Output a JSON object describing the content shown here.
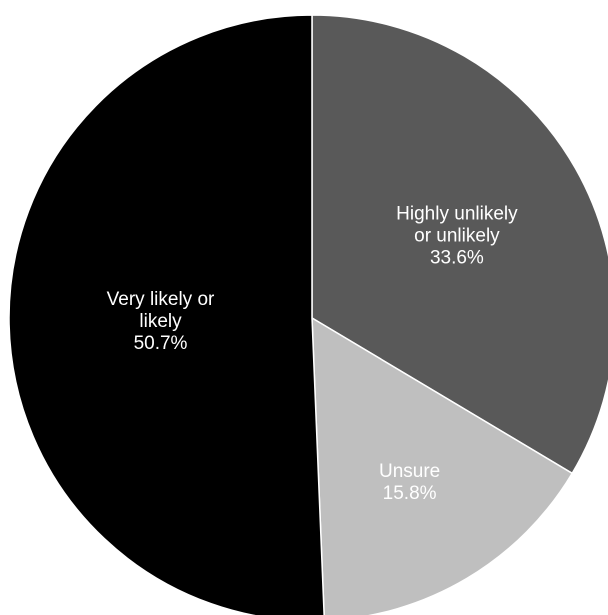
{
  "chart_data": {
    "type": "pie",
    "start": "top",
    "direction": "clockwise",
    "slices": [
      {
        "label_lines": [
          "Highly unlikely",
          "or unlikely"
        ],
        "value_label": "33.6%",
        "value": 33.6,
        "color": "#595959"
      },
      {
        "label_lines": [
          "Unsure"
        ],
        "value_label": "15.8%",
        "value": 15.8,
        "color": "#bfbfbf"
      },
      {
        "label_lines": [
          "Very likely or",
          "likely"
        ],
        "value_label": "50.7%",
        "value": 50.7,
        "color": "#000000"
      }
    ]
  }
}
